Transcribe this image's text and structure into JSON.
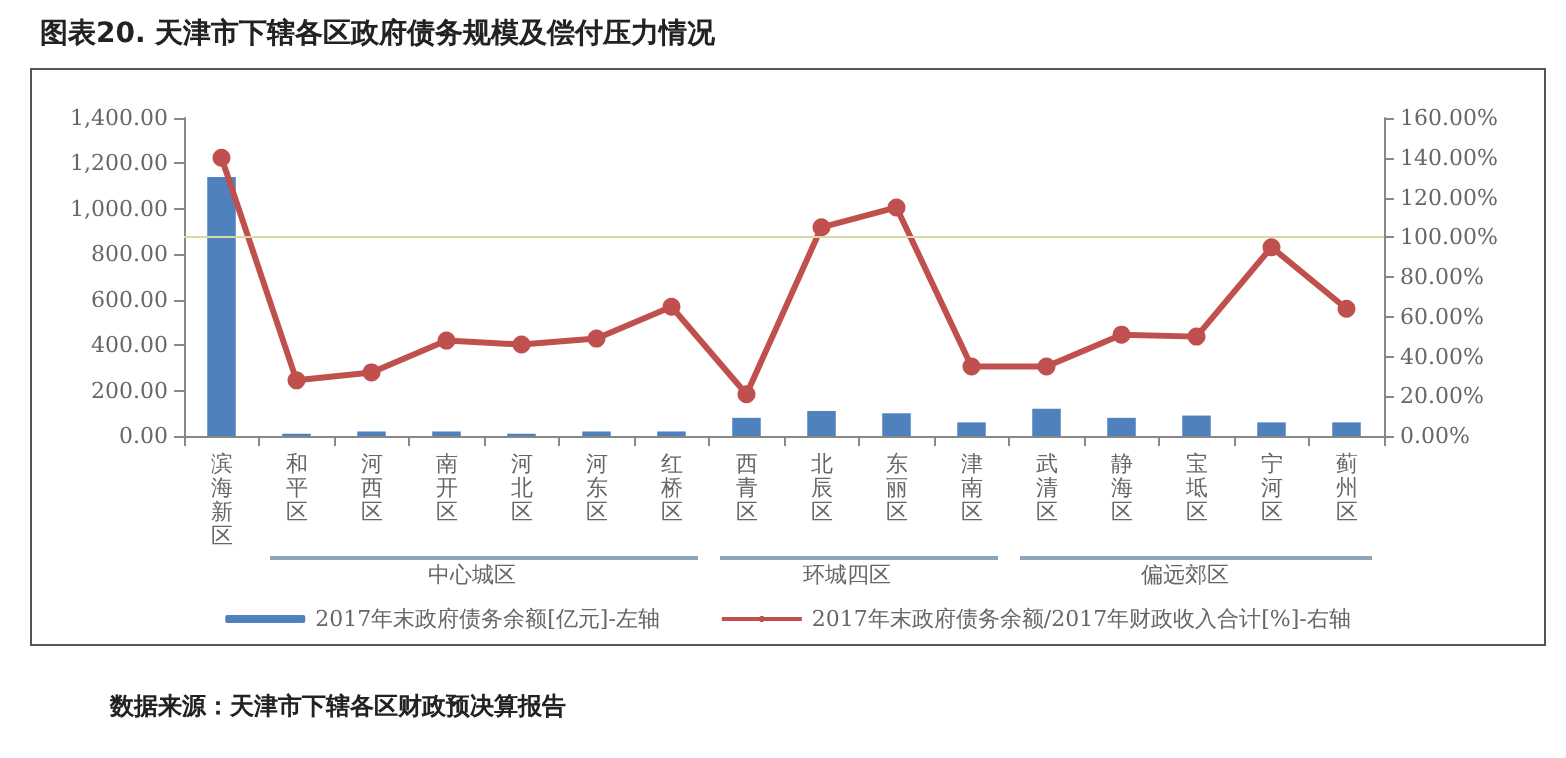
{
  "chart_data": {
    "type": "bar",
    "title": "图表20. 天津市下辖各区政府债务规模及偿付压力情况",
    "categories": [
      "滨海新区",
      "和平区",
      "河西区",
      "南开区",
      "河北区",
      "河东区",
      "红桥区",
      "西青区",
      "北辰区",
      "东丽区",
      "津南区",
      "武清区",
      "静海区",
      "宝坻区",
      "宁河区",
      "蓟州区"
    ],
    "series": [
      {
        "name": "2017年末政府债务余额[亿元]-左轴",
        "color": "#4f81bd",
        "values": [
          1140,
          10,
          20,
          20,
          10,
          20,
          20,
          80,
          110,
          100,
          60,
          120,
          80,
          90,
          60,
          60
        ]
      },
      {
        "name": "2017年末政府债务余额/2017年财政收入合计[%]-右轴",
        "type": "line",
        "axis": "y2",
        "color": "#c0504d",
        "values": [
          140,
          28,
          32,
          48,
          46,
          49,
          65,
          21,
          105,
          115,
          35,
          35,
          51,
          50,
          95,
          64
        ]
      }
    ],
    "ylim": [
      0,
      1400
    ],
    "yticks": [
      {
        "value": 0,
        "label": "0.00"
      },
      {
        "value": 200,
        "label": "200.00"
      },
      {
        "value": 400,
        "label": "400.00"
      },
      {
        "value": 600,
        "label": "600.00"
      },
      {
        "value": 800,
        "label": "800.00"
      },
      {
        "value": 1000,
        "label": "1,000.00"
      },
      {
        "value": 1200,
        "label": "1,200.00"
      },
      {
        "value": 1400,
        "label": "1,400.00"
      }
    ],
    "y2lim": [
      0,
      160
    ],
    "y2ticks": [
      {
        "value": 0,
        "label": "0.00%"
      },
      {
        "value": 20,
        "label": "20.00%"
      },
      {
        "value": 40,
        "label": "40.00%"
      },
      {
        "value": 60,
        "label": "60.00%"
      },
      {
        "value": 80,
        "label": "80.00%"
      },
      {
        "value": 100,
        "label": "100.00%"
      },
      {
        "value": 120,
        "label": "120.00%"
      },
      {
        "value": 140,
        "label": "140.00%"
      },
      {
        "value": 160,
        "label": "160.00%"
      }
    ],
    "ref_lines": [
      {
        "axis": "y2",
        "value": 100,
        "color": "#d9d9a6"
      }
    ],
    "annotations": [
      "中心城区",
      "环城四区",
      "偏远郊区",
      "数据来源：天津市下辖各区财政预决算报告"
    ],
    "legend": "bottom",
    "grid": false,
    "marker": "circle",
    "line_style": "solid"
  }
}
